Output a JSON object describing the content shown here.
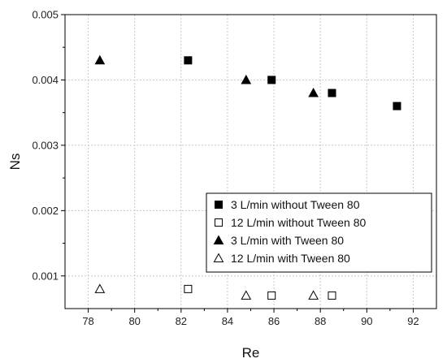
{
  "chart_data": {
    "type": "scatter",
    "title": "",
    "xlabel": "Re",
    "ylabel": "Ns",
    "xlim": [
      77,
      93
    ],
    "ylim": [
      0.0005,
      0.005
    ],
    "xticks": [
      78,
      80,
      82,
      84,
      86,
      88,
      90,
      92
    ],
    "yticks": [
      0.001,
      0.002,
      0.003,
      0.004,
      0.005
    ],
    "x_tick_labels": [
      "78",
      "80",
      "82",
      "84",
      "86",
      "88",
      "90",
      "92"
    ],
    "y_tick_labels": [
      "0.001",
      "0.002",
      "0.003",
      "0.004",
      "0.005"
    ],
    "grid": true,
    "legend_position": "bottom-right",
    "series": [
      {
        "name": "3 L/min without Tween 80",
        "marker": "square-filled",
        "points": [
          [
            82.3,
            0.0043
          ],
          [
            85.9,
            0.004
          ],
          [
            88.5,
            0.0038
          ],
          [
            91.3,
            0.0036
          ]
        ]
      },
      {
        "name": "12 L/min without Tween 80",
        "marker": "square-open",
        "points": [
          [
            82.3,
            0.0008
          ],
          [
            85.9,
            0.0007
          ],
          [
            88.5,
            0.0007
          ]
        ]
      },
      {
        "name": "3 L/min with Tween 80",
        "marker": "triangle-filled",
        "points": [
          [
            78.5,
            0.0043
          ],
          [
            84.8,
            0.004
          ],
          [
            87.7,
            0.0038
          ]
        ]
      },
      {
        "name": "12 L/min with Tween 80",
        "marker": "triangle-open",
        "points": [
          [
            78.5,
            0.0008
          ],
          [
            84.8,
            0.0007
          ],
          [
            87.7,
            0.0007
          ]
        ]
      }
    ]
  }
}
